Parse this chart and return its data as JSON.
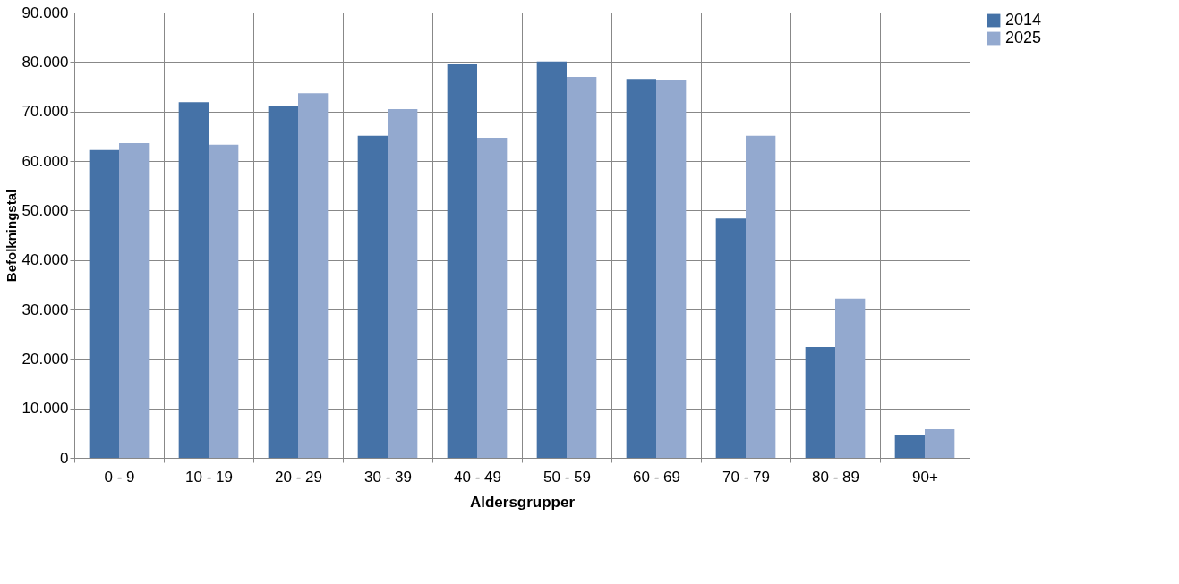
{
  "chart_data": {
    "type": "bar",
    "xlabel": "Aldersgrupper",
    "ylabel": "Befolkningstal",
    "categories": [
      "0 - 9",
      "10 - 19",
      "20 - 29",
      "30 - 39",
      "40 - 49",
      "50 - 59",
      "60 - 69",
      "70 - 79",
      "80 - 89",
      "90+"
    ],
    "series": [
      {
        "name": "2014",
        "color": "#4572a7",
        "values": [
          62200,
          71900,
          71200,
          65100,
          79500,
          80100,
          76600,
          48400,
          22400,
          4700
        ]
      },
      {
        "name": "2025",
        "color": "#93a9cf",
        "values": [
          63600,
          63300,
          73700,
          70500,
          64700,
          77000,
          76300,
          65100,
          32200,
          5800
        ]
      }
    ],
    "ylim": [
      0,
      90000
    ],
    "yticks": [
      {
        "value": 0,
        "label": "0"
      },
      {
        "value": 10000,
        "label": "10.000"
      },
      {
        "value": 20000,
        "label": "20.000"
      },
      {
        "value": 30000,
        "label": "30.000"
      },
      {
        "value": 40000,
        "label": "40.000"
      },
      {
        "value": 50000,
        "label": "50.000"
      },
      {
        "value": 60000,
        "label": "60.000"
      },
      {
        "value": 70000,
        "label": "70.000"
      },
      {
        "value": 80000,
        "label": "80.000"
      },
      {
        "value": 90000,
        "label": "90.000"
      }
    ],
    "grid": true,
    "legend": "right"
  }
}
